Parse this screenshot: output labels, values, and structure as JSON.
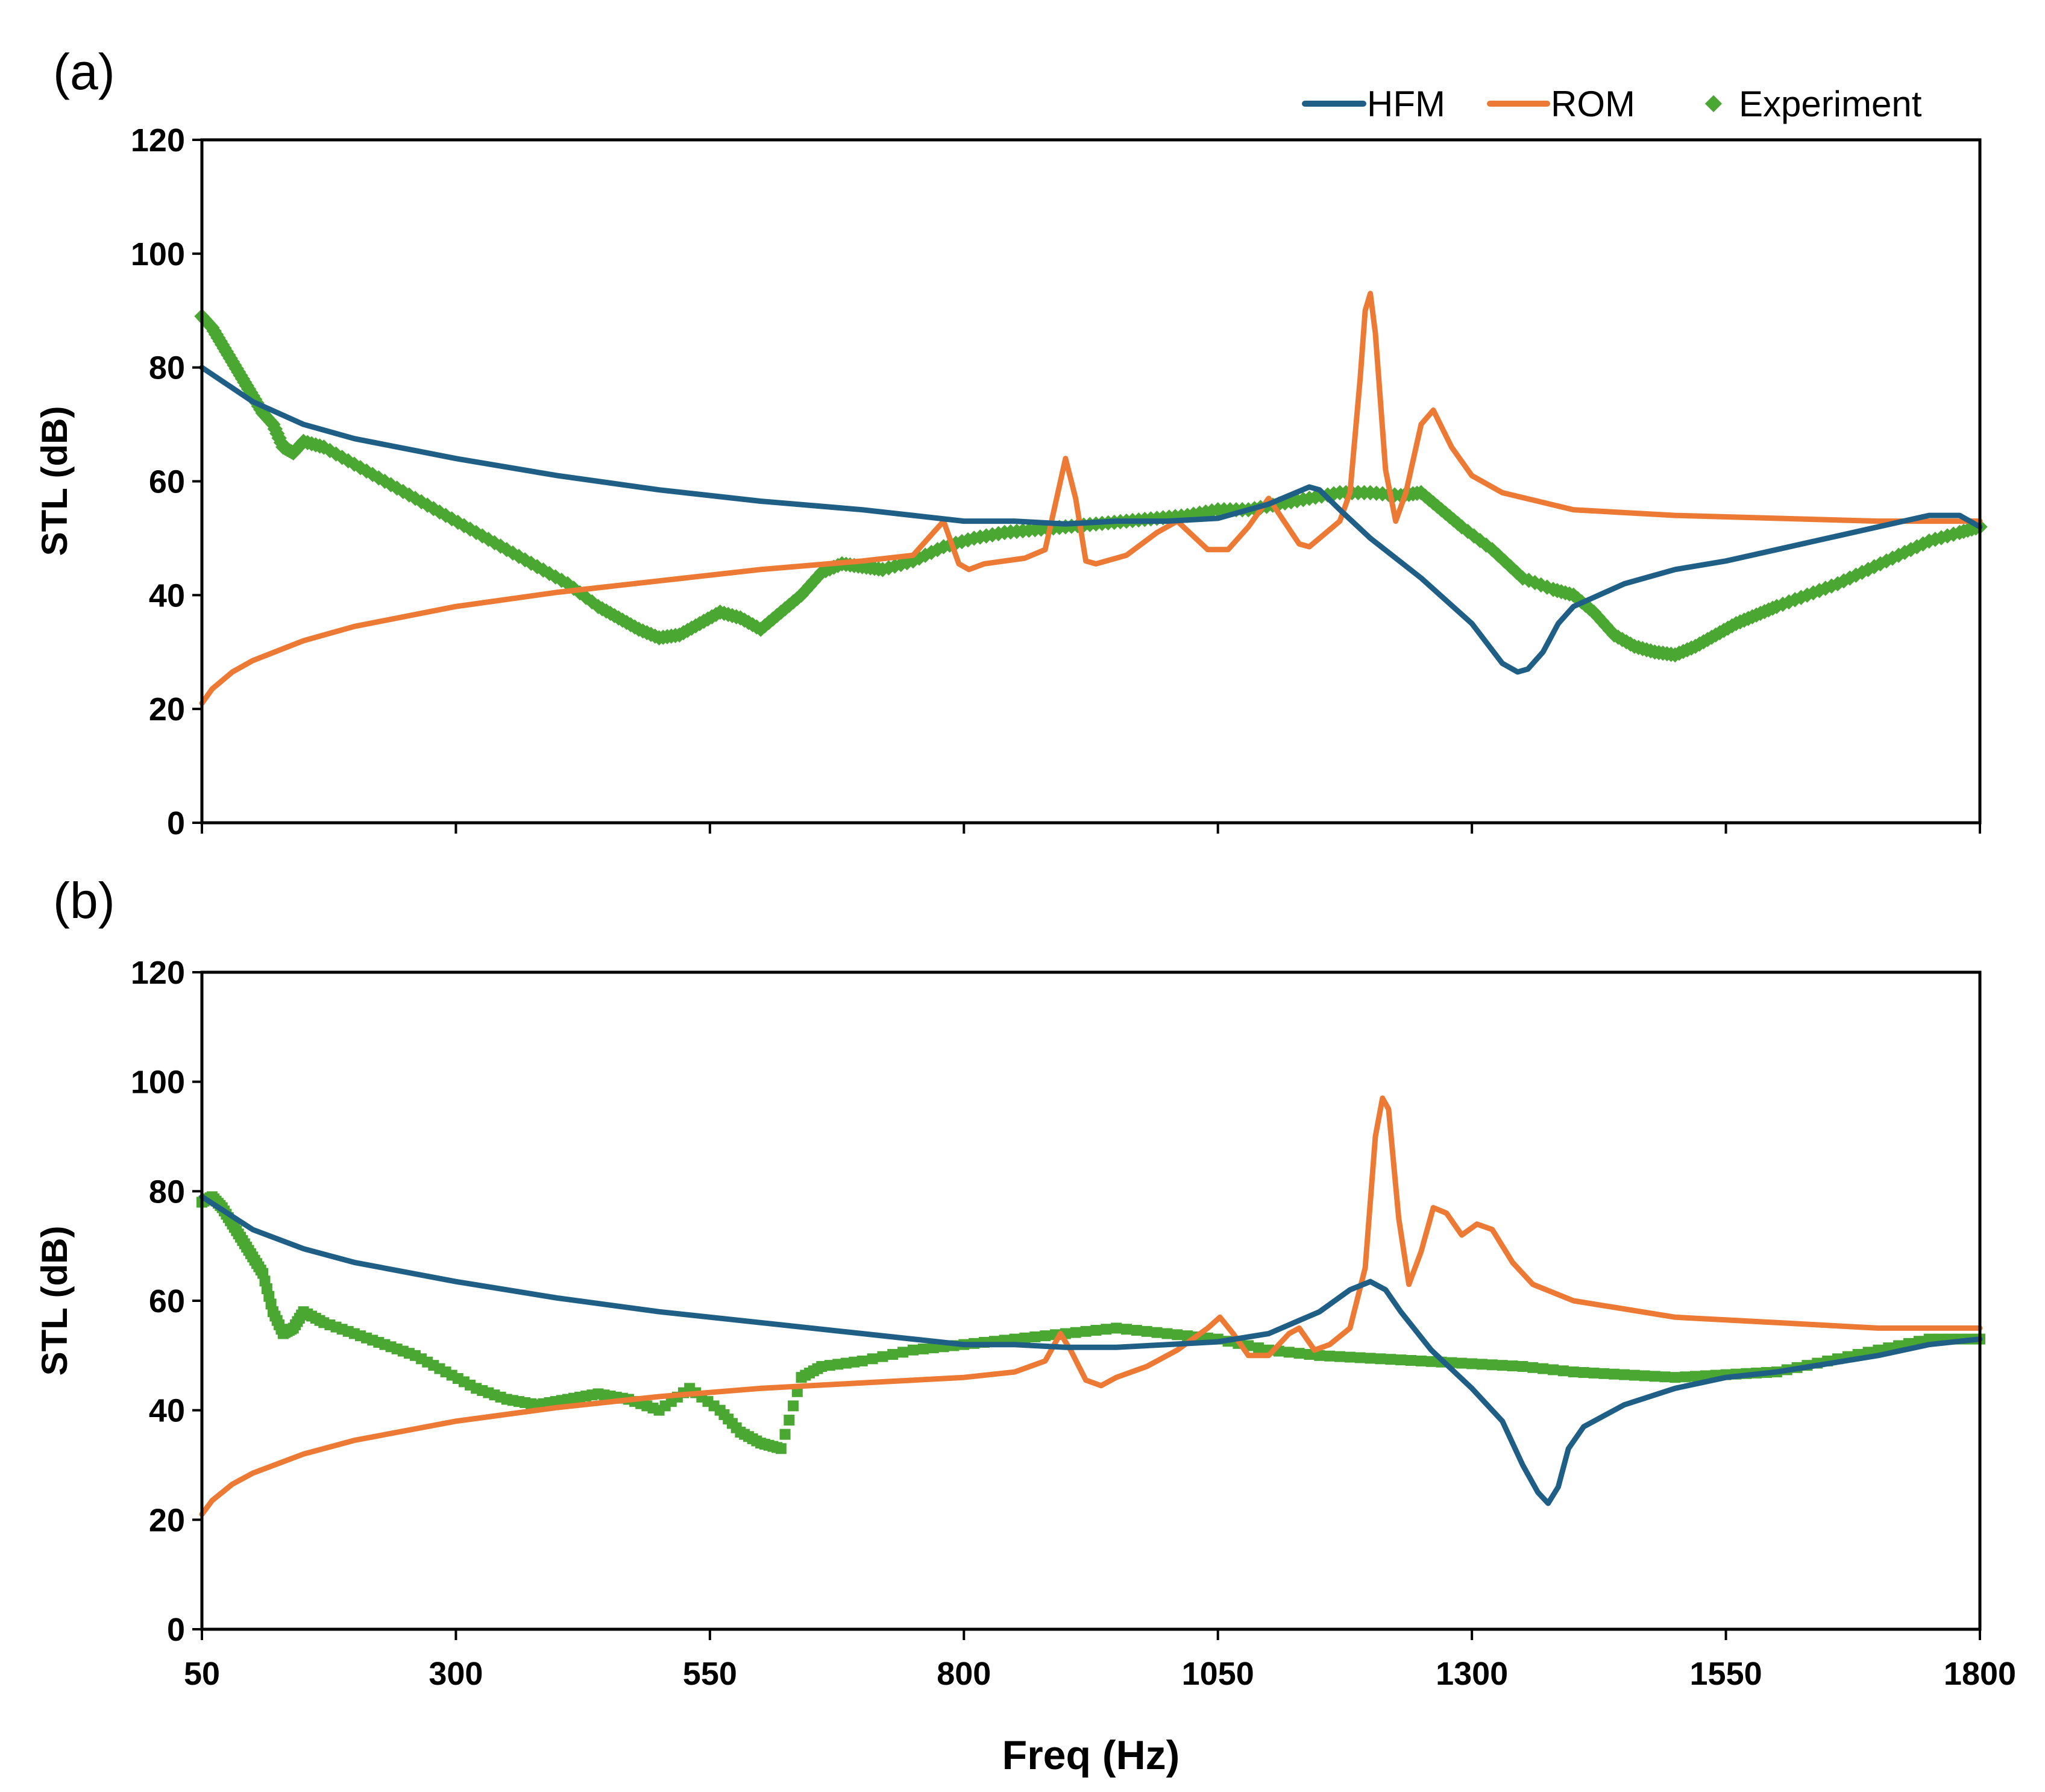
{
  "chart_data": [
    {
      "type": "line",
      "panel_label": "(a)",
      "xlabel": "Freq (Hz)",
      "ylabel": "STL (dB)",
      "xlim": [
        50,
        1800
      ],
      "ylim": [
        0,
        120
      ],
      "xticks": [
        "50",
        "300",
        "550",
        "800",
        "1050",
        "1300",
        "1550",
        "1800"
      ],
      "yticks": [
        "0",
        "20",
        "40",
        "60",
        "80",
        "100",
        "120"
      ],
      "legend": {
        "position": "top-right",
        "entries": [
          "HFM",
          "ROM",
          "Experiment"
        ]
      },
      "series": [
        {
          "name": "HFM",
          "color": "#1f5f86",
          "style": "line",
          "x": [
            50,
            100,
            150,
            200,
            300,
            400,
            500,
            600,
            700,
            750,
            800,
            850,
            900,
            950,
            1000,
            1050,
            1100,
            1140,
            1150,
            1170,
            1200,
            1250,
            1300,
            1330,
            1345,
            1355,
            1370,
            1385,
            1400,
            1450,
            1500,
            1550,
            1600,
            1650,
            1700,
            1750,
            1780,
            1800
          ],
          "y": [
            80,
            74,
            70,
            67.5,
            64,
            61,
            58.5,
            56.5,
            55,
            54,
            53,
            53,
            52.5,
            53,
            53,
            53.5,
            56,
            59,
            58.5,
            55,
            50,
            43,
            35,
            28,
            26.5,
            27,
            30,
            35,
            38,
            42,
            44.5,
            46,
            48,
            50,
            52,
            54,
            54,
            52
          ]
        },
        {
          "name": "ROM",
          "color": "#ec7a35",
          "style": "line",
          "x": [
            50,
            60,
            80,
            100,
            150,
            200,
            300,
            400,
            500,
            600,
            700,
            750,
            780,
            795,
            805,
            820,
            840,
            860,
            880,
            885,
            900,
            910,
            920,
            930,
            940,
            960,
            990,
            1010,
            1040,
            1060,
            1080,
            1100,
            1130,
            1140,
            1150,
            1170,
            1180,
            1190,
            1195,
            1200,
            1205,
            1215,
            1225,
            1235,
            1250,
            1262,
            1280,
            1300,
            1330,
            1400,
            1500,
            1600,
            1700,
            1800
          ],
          "y": [
            21,
            23.5,
            26.5,
            28.5,
            32,
            34.5,
            38,
            40.5,
            42.5,
            44.5,
            46,
            47,
            53,
            45.5,
            44.5,
            45.5,
            46,
            46.5,
            48,
            52,
            64,
            57,
            46,
            45.5,
            46,
            47,
            51,
            53,
            48,
            48,
            52,
            57,
            49,
            48.5,
            50,
            53,
            58,
            78,
            90,
            93,
            86,
            62,
            53,
            58,
            70,
            72.5,
            66,
            61,
            58,
            55,
            54,
            53.5,
            53,
            53
          ]
        },
        {
          "name": "Experiment",
          "color": "#4aa832",
          "style": "markers",
          "marker": "diamond",
          "x": [
            50,
            60,
            70,
            80,
            90,
            100,
            110,
            120,
            130,
            140,
            150,
            170,
            200,
            230,
            260,
            290,
            320,
            350,
            380,
            410,
            440,
            460,
            480,
            500,
            520,
            540,
            560,
            580,
            600,
            620,
            640,
            660,
            680,
            700,
            720,
            750,
            780,
            810,
            840,
            870,
            900,
            930,
            960,
            990,
            1020,
            1050,
            1080,
            1110,
            1140,
            1170,
            1200,
            1230,
            1250,
            1270,
            1290,
            1320,
            1350,
            1380,
            1400,
            1420,
            1440,
            1460,
            1480,
            1500,
            1520,
            1540,
            1560,
            1580,
            1600,
            1630,
            1660,
            1690,
            1720,
            1750,
            1780,
            1800
          ],
          "y": [
            89,
            87,
            84,
            81,
            78,
            75,
            72,
            70,
            66,
            65,
            67,
            66,
            63,
            60,
            57,
            54,
            51,
            48,
            45,
            42,
            38,
            36,
            34,
            32.5,
            33,
            35,
            37,
            36,
            34,
            37,
            40,
            44,
            45.5,
            45,
            44.5,
            46,
            48.5,
            50,
            51,
            51.5,
            52,
            52.5,
            53,
            53.5,
            54,
            55,
            55,
            56,
            57,
            58,
            58,
            57.5,
            58,
            55,
            52,
            48,
            43,
            41,
            40,
            37,
            33,
            31,
            30,
            29.5,
            31,
            33,
            35,
            36.5,
            38,
            40,
            42,
            44.5,
            47,
            49.5,
            51,
            52
          ]
        }
      ]
    },
    {
      "type": "line",
      "panel_label": "(b)",
      "xlabel": "Freq (Hz)",
      "ylabel": "STL (dB)",
      "xlim": [
        50,
        1800
      ],
      "ylim": [
        0,
        120
      ],
      "xticks": [
        "50",
        "300",
        "550",
        "800",
        "1050",
        "1300",
        "1550",
        "1800"
      ],
      "yticks": [
        "0",
        "20",
        "40",
        "60",
        "80",
        "100",
        "120"
      ],
      "series": [
        {
          "name": "HFM",
          "color": "#1f5f86",
          "style": "line",
          "x": [
            50,
            100,
            150,
            200,
            300,
            400,
            500,
            600,
            700,
            750,
            800,
            850,
            900,
            950,
            1000,
            1050,
            1100,
            1150,
            1180,
            1200,
            1215,
            1230,
            1260,
            1300,
            1330,
            1350,
            1365,
            1375,
            1385,
            1395,
            1410,
            1450,
            1500,
            1550,
            1600,
            1650,
            1700,
            1750,
            1800
          ],
          "y": [
            79,
            73,
            69.5,
            67,
            63.5,
            60.5,
            58,
            56,
            54,
            53,
            52,
            52,
            51.5,
            51.5,
            52,
            52.5,
            54,
            58,
            62,
            63.5,
            62,
            58,
            51,
            44,
            38,
            30,
            25,
            23,
            26,
            33,
            37,
            41,
            44,
            46,
            47,
            48.5,
            50,
            52,
            53
          ]
        },
        {
          "name": "ROM",
          "color": "#ec7a35",
          "style": "line",
          "x": [
            50,
            60,
            80,
            100,
            150,
            200,
            300,
            400,
            500,
            600,
            700,
            800,
            850,
            880,
            895,
            905,
            920,
            935,
            950,
            980,
            1010,
            1040,
            1052,
            1065,
            1080,
            1100,
            1120,
            1130,
            1145,
            1160,
            1180,
            1195,
            1205,
            1212,
            1218,
            1228,
            1238,
            1250,
            1262,
            1275,
            1290,
            1305,
            1320,
            1340,
            1360,
            1400,
            1500,
            1600,
            1700,
            1800
          ],
          "y": [
            21,
            23.5,
            26.5,
            28.5,
            32,
            34.5,
            38,
            40.5,
            42.5,
            44,
            45,
            46,
            47,
            49,
            54,
            51,
            45.5,
            44.5,
            46,
            48,
            51,
            55,
            57,
            54,
            50,
            50,
            54,
            55,
            51,
            52,
            55,
            66,
            90,
            97,
            95,
            75,
            63,
            69,
            77,
            76,
            72,
            74,
            73,
            67,
            63,
            60,
            57,
            56,
            55,
            55
          ]
        },
        {
          "name": "Experiment",
          "color": "#4aa832",
          "style": "markers",
          "marker": "square",
          "x": [
            50,
            60,
            70,
            80,
            90,
            100,
            110,
            120,
            130,
            140,
            150,
            170,
            200,
            230,
            260,
            290,
            320,
            350,
            380,
            410,
            440,
            470,
            500,
            530,
            560,
            580,
            600,
            620,
            640,
            660,
            700,
            750,
            800,
            850,
            900,
            950,
            1000,
            1050,
            1100,
            1150,
            1200,
            1250,
            1300,
            1350,
            1400,
            1450,
            1500,
            1550,
            1600,
            1650,
            1700,
            1750,
            1800
          ],
          "y": [
            78,
            79,
            77,
            74,
            71,
            68,
            65,
            58,
            54,
            55,
            58,
            56,
            54,
            52,
            50,
            47,
            44,
            42,
            41,
            42,
            43,
            42,
            40,
            44,
            40,
            36,
            34,
            33,
            46,
            48,
            49,
            51,
            52,
            53,
            54,
            55,
            54,
            53,
            51,
            50,
            49.5,
            49,
            48.5,
            48,
            47,
            46.5,
            46,
            46.5,
            47,
            49,
            51,
            53,
            53
          ]
        }
      ]
    }
  ]
}
